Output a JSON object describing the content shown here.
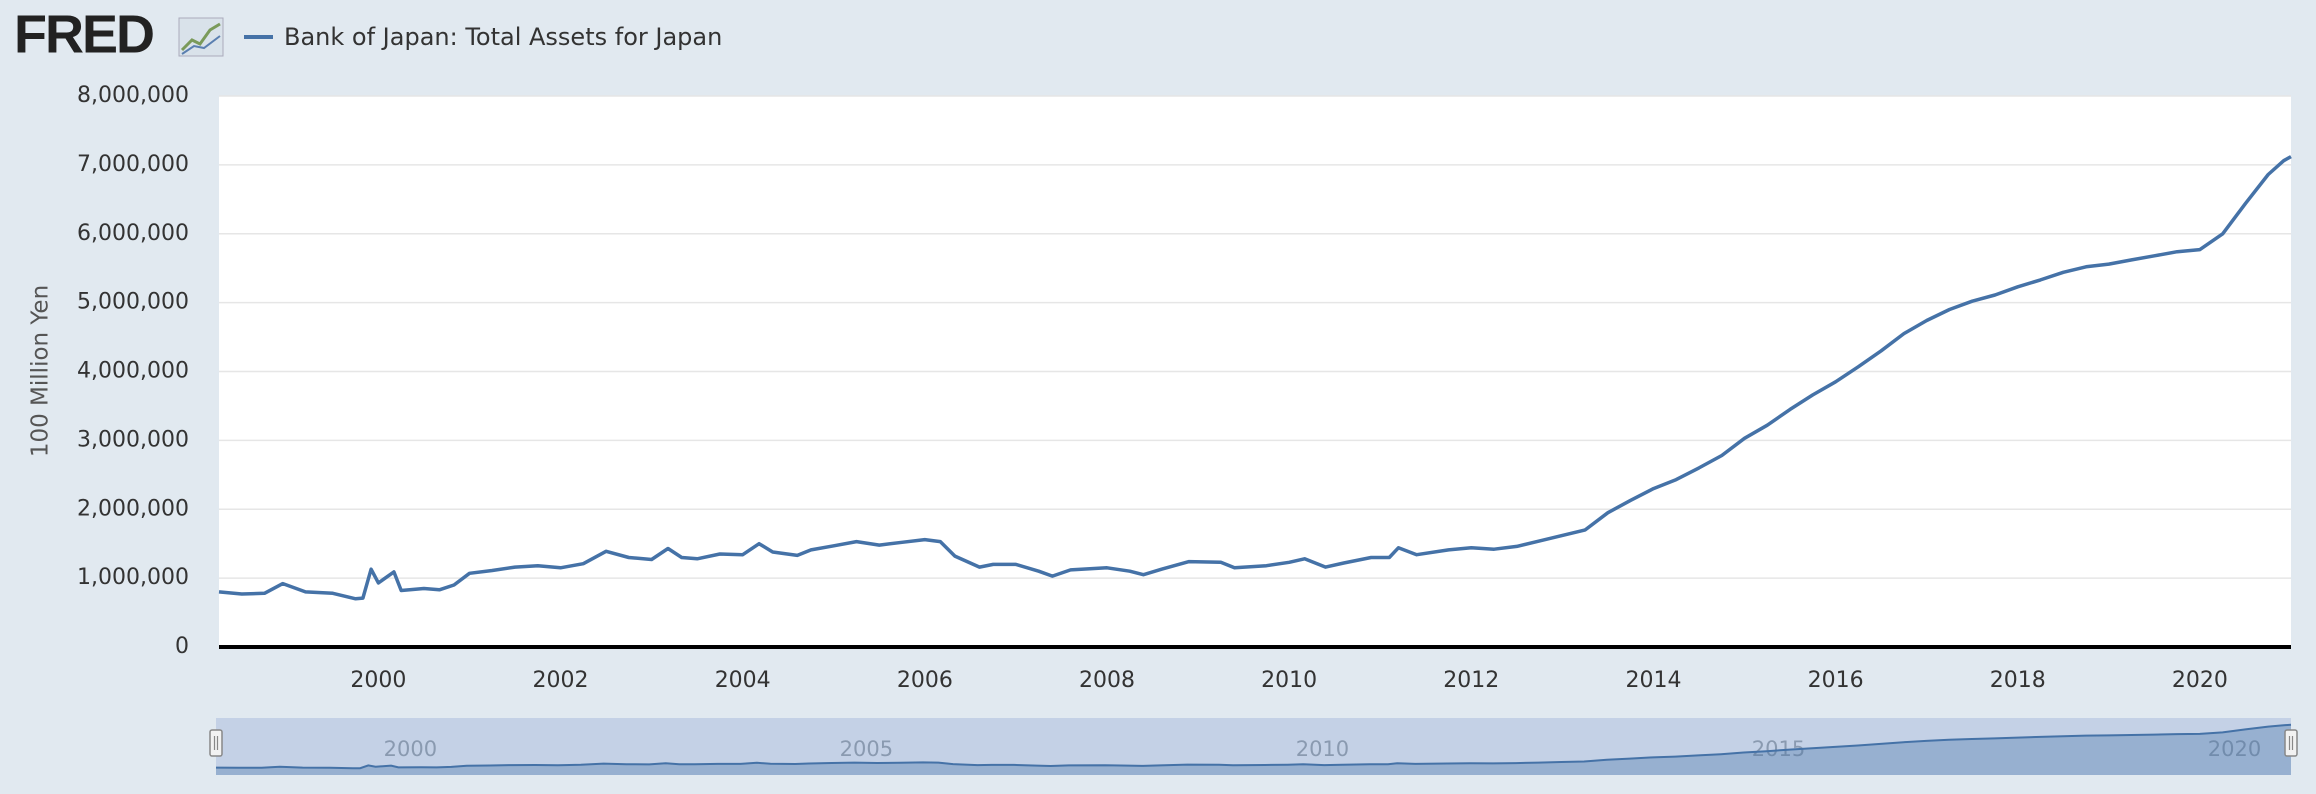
{
  "brand": "FRED",
  "chart_data": {
    "type": "line",
    "y_label": "100 Million Yen",
    "series": [
      {
        "name": "Bank of Japan: Total Assets for Japan",
        "color": "#4572a7",
        "x": [
          1998.25,
          1998.5,
          1998.75,
          1998.95,
          1999.2,
          1999.5,
          1999.75,
          1999.83,
          1999.92,
          2000.0,
          2000.17,
          2000.25,
          2000.5,
          2000.67,
          2000.83,
          2001.0,
          2001.25,
          2001.5,
          2001.75,
          2002.0,
          2002.25,
          2002.5,
          2002.75,
          2003.0,
          2003.18,
          2003.33,
          2003.5,
          2003.75,
          2004.0,
          2004.18,
          2004.33,
          2004.6,
          2004.75,
          2005.0,
          2005.25,
          2005.5,
          2005.75,
          2006.0,
          2006.17,
          2006.33,
          2006.6,
          2006.75,
          2007.0,
          2007.25,
          2007.4,
          2007.6,
          2008.0,
          2008.25,
          2008.4,
          2008.6,
          2008.9,
          2009.25,
          2009.4,
          2009.75,
          2010.0,
          2010.17,
          2010.4,
          2010.6,
          2010.9,
          2011.1,
          2011.2,
          2011.4,
          2011.75,
          2012.0,
          2012.25,
          2012.5,
          2012.75,
          2013.0,
          2013.25,
          2013.5,
          2013.75,
          2014.0,
          2014.25,
          2014.5,
          2014.75,
          2015.0,
          2015.25,
          2015.5,
          2015.75,
          2016.0,
          2016.25,
          2016.5,
          2016.75,
          2017.0,
          2017.25,
          2017.5,
          2017.75,
          2018.0,
          2018.25,
          2018.5,
          2018.75,
          2019.0,
          2019.25,
          2019.5,
          2019.75,
          2020.0,
          2020.25,
          2020.5,
          2020.75,
          2020.92,
          2021.0
        ],
        "values": [
          800000,
          770000,
          780000,
          920000,
          800000,
          780000,
          700000,
          710000,
          1130000,
          930000,
          1090000,
          820000,
          850000,
          830000,
          900000,
          1070000,
          1110000,
          1160000,
          1180000,
          1150000,
          1210000,
          1390000,
          1300000,
          1270000,
          1430000,
          1300000,
          1280000,
          1350000,
          1340000,
          1500000,
          1380000,
          1330000,
          1410000,
          1470000,
          1530000,
          1480000,
          1520000,
          1560000,
          1530000,
          1320000,
          1160000,
          1200000,
          1200000,
          1100000,
          1030000,
          1120000,
          1150000,
          1100000,
          1050000,
          1130000,
          1240000,
          1230000,
          1150000,
          1180000,
          1230000,
          1280000,
          1160000,
          1220000,
          1300000,
          1300000,
          1440000,
          1340000,
          1410000,
          1440000,
          1420000,
          1460000,
          1540000,
          1620000,
          1700000,
          1950000,
          2130000,
          2300000,
          2430000,
          2600000,
          2780000,
          3030000,
          3220000,
          3450000,
          3660000,
          3850000,
          4070000,
          4300000,
          4550000,
          4740000,
          4900000,
          5020000,
          5110000,
          5230000,
          5330000,
          5440000,
          5520000,
          5560000,
          5620000,
          5680000,
          5740000,
          5770000,
          6000000,
          6440000,
          6860000,
          7060000,
          7120000
        ]
      }
    ],
    "xlim": [
      1998.25,
      2021.0
    ],
    "xticks": [
      2000,
      2002,
      2004,
      2006,
      2008,
      2010,
      2012,
      2014,
      2016,
      2018,
      2020
    ],
    "ylim": [
      0,
      8000000
    ],
    "yticks": [
      0,
      {
        "value": 1000000,
        "label": "1,000,000"
      },
      {
        "value": 2000000,
        "label": "2,000,000"
      },
      {
        "value": 3000000,
        "label": "3,000,000"
      },
      {
        "value": 4000000,
        "label": "4,000,000"
      },
      {
        "value": 5000000,
        "label": "5,000,000"
      },
      {
        "value": 6000000,
        "label": "6,000,000"
      },
      {
        "value": 7000000,
        "label": "7,000,000"
      },
      {
        "value": 8000000,
        "label": "8,000,000"
      }
    ],
    "grid": true,
    "navigator_xticks": [
      2000,
      2005,
      2010,
      2015,
      2020
    ]
  }
}
